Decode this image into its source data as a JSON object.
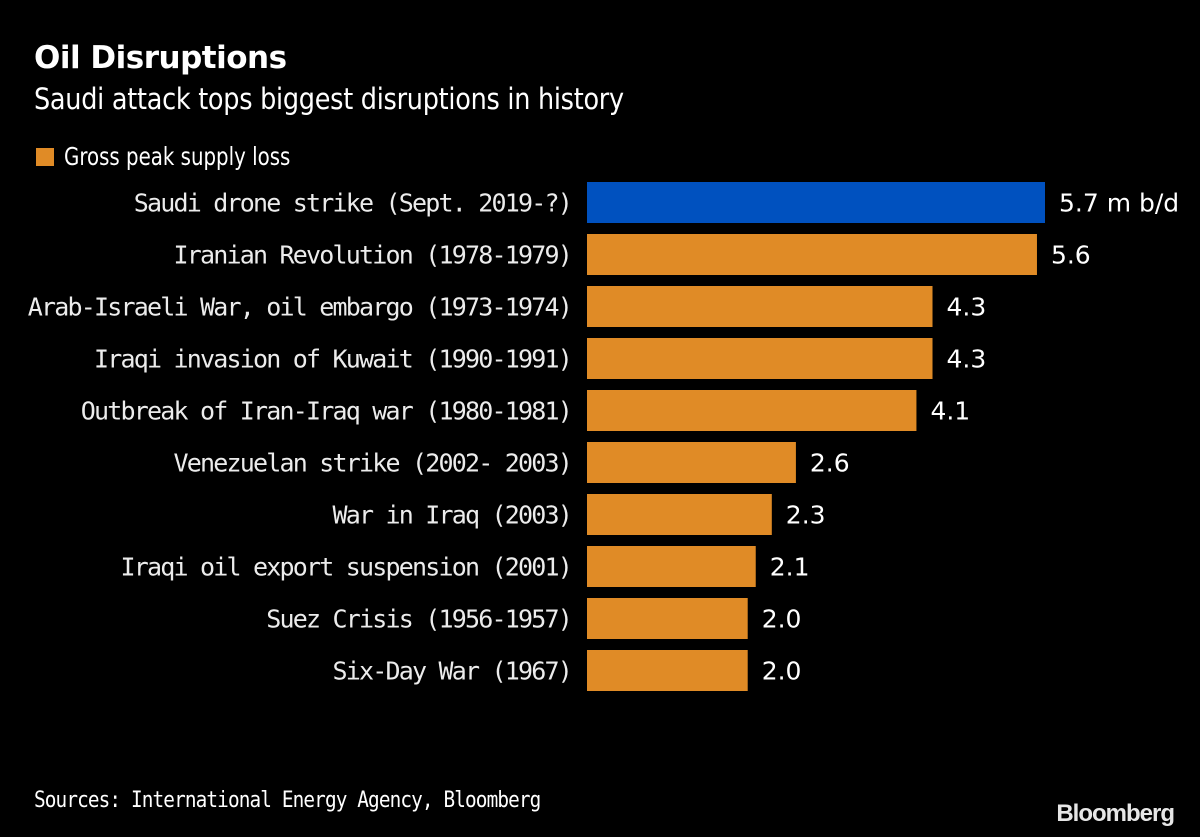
{
  "chart_data": {
    "type": "bar",
    "orientation": "horizontal",
    "title": "Oil Disruptions",
    "subtitle": "Saudi attack tops biggest disruptions in history",
    "legend": [
      {
        "label": "Gross peak supply loss",
        "color": "#e08b26"
      }
    ],
    "legend_position": "top-left",
    "unit_suffix_first": " m b/d",
    "categories": [
      "Saudi drone strike (Sept. 2019-?)",
      "Iranian Revolution (1978-1979)",
      "Arab-Israeli War, oil embargo (1973-1974)",
      "Iraqi invasion of Kuwait (1990-1991)",
      "Outbreak of Iran-Iraq war (1980-1981)",
      "Venezuelan strike (2002- 2003)",
      "War in Iraq (2003)",
      "Iraqi oil export suspension (2001)",
      "Suez Crisis (1956-1957)",
      "Six-Day War (1967)"
    ],
    "values": [
      5.7,
      5.6,
      4.3,
      4.3,
      4.1,
      2.6,
      2.3,
      2.1,
      2.0,
      2.0
    ],
    "value_labels": [
      "5.7 m b/d",
      "5.6",
      "4.3",
      "4.3",
      "4.1",
      "2.6",
      "2.3",
      "2.1",
      "2.0",
      "2.0"
    ],
    "colors": [
      "#0051bf",
      "#e08b26",
      "#e08b26",
      "#e08b26",
      "#e08b26",
      "#e08b26",
      "#e08b26",
      "#e08b26",
      "#e08b26",
      "#e08b26"
    ],
    "xlim": [
      0,
      5.7
    ],
    "grid": false,
    "xlabel": "",
    "ylabel": ""
  },
  "footer": {
    "source": "Sources: International Energy Agency, Bloomberg",
    "brand": "Bloomberg"
  }
}
